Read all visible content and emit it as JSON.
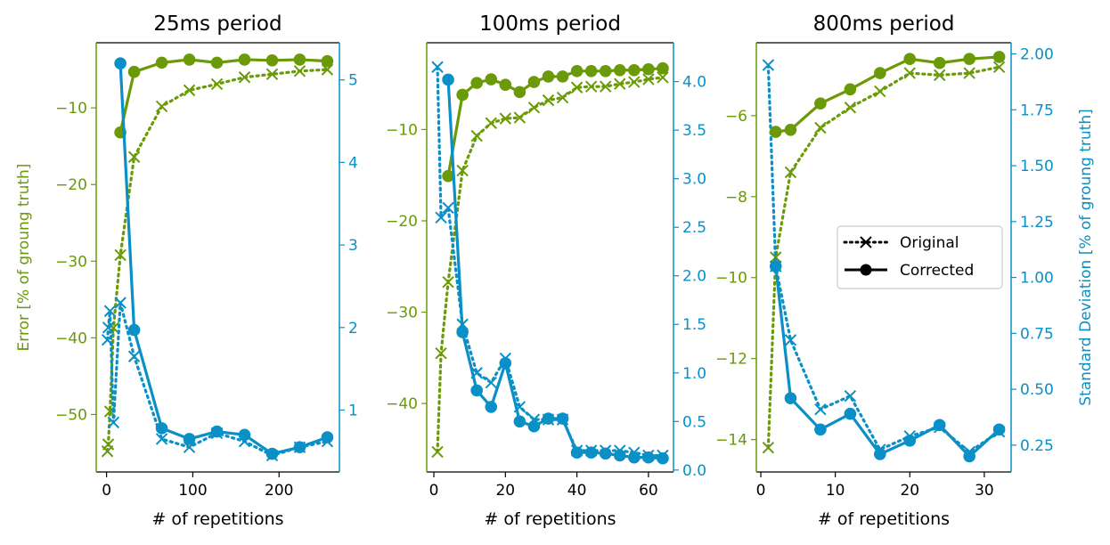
{
  "chart_data": {
    "type": "line",
    "shared": {
      "xlabel": "# of repetitions",
      "ylabel_left": "Error [% of groung truth]",
      "ylabel_right": "Standard Deviation [% of groung truth]",
      "legend": [
        {
          "name": "Original",
          "marker": "x",
          "linestyle": "dotted"
        },
        {
          "name": "Corrected",
          "marker": "o",
          "linestyle": "solid"
        }
      ],
      "legend_location": "right, in third panel",
      "colors": {
        "error": "#6a9a07",
        "std": "#0a90c6"
      }
    },
    "panels": [
      {
        "title": "25ms period",
        "xlim": [
          -12,
          270
        ],
        "xticks": [
          0,
          100,
          200
        ],
        "ylim_left": [
          -57.5,
          -1.5
        ],
        "yticks_left": [
          -50,
          -40,
          -30,
          -20,
          -10
        ],
        "ylim_right": [
          0.25,
          5.45
        ],
        "yticks_right": [
          1,
          2,
          3,
          4,
          5
        ],
        "series": [
          {
            "name": "Error Original",
            "axis": "left",
            "color": "#6a9a07",
            "marker": "x",
            "linestyle": "dotted",
            "x": [
              1,
              2,
              4,
              8,
              16,
              32,
              64,
              96,
              128,
              160,
              192,
              224,
              256
            ],
            "y": [
              -54.8,
              -53.9,
              -49.6,
              -38.7,
              -29.2,
              -16.4,
              -9.8,
              -7.7,
              -6.9,
              -6.0,
              -5.6,
              -5.2,
              -5.0
            ]
          },
          {
            "name": "Error Corrected",
            "axis": "left",
            "color": "#6a9a07",
            "marker": "o",
            "linestyle": "solid",
            "x": [
              16,
              32,
              64,
              96,
              128,
              160,
              192,
              224,
              256
            ],
            "y": [
              -13.2,
              -5.3,
              -4.1,
              -3.7,
              -4.1,
              -3.7,
              -3.8,
              -3.7,
              -3.9
            ]
          },
          {
            "name": "Std Original",
            "axis": "right",
            "color": "#0a90c6",
            "marker": "x",
            "linestyle": "dotted",
            "x": [
              1,
              2,
              4,
              8,
              16,
              32,
              64,
              96,
              128,
              160,
              192,
              224,
              256
            ],
            "y": [
              1.85,
              2.0,
              2.2,
              0.85,
              2.3,
              1.65,
              0.65,
              0.55,
              0.72,
              0.62,
              0.45,
              0.55,
              0.62
            ]
          },
          {
            "name": "Std Corrected",
            "axis": "right",
            "color": "#0a90c6",
            "marker": "o",
            "linestyle": "solid",
            "x": [
              16,
              32,
              64,
              96,
              128,
              160,
              192,
              224,
              256
            ],
            "y": [
              5.2,
              1.97,
              0.78,
              0.65,
              0.74,
              0.7,
              0.47,
              0.55,
              0.67
            ]
          }
        ]
      },
      {
        "title": "100ms period",
        "xlim": [
          -2,
          67
        ],
        "xticks": [
          0,
          20,
          40,
          60
        ],
        "ylim_left": [
          -47.5,
          -0.5
        ],
        "yticks_left": [
          -40,
          -30,
          -20,
          -10
        ],
        "ylim_right": [
          -0.02,
          4.4
        ],
        "yticks_right": [
          0.0,
          0.5,
          1.0,
          1.5,
          2.0,
          2.5,
          3.0,
          3.5,
          4.0
        ],
        "series": [
          {
            "name": "Error Original",
            "axis": "left",
            "color": "#6a9a07",
            "marker": "x",
            "linestyle": "dotted",
            "x": [
              1,
              2,
              4,
              8,
              12,
              16,
              20,
              24,
              28,
              32,
              36,
              40,
              44,
              48,
              52,
              56,
              60,
              64
            ],
            "y": [
              -45.3,
              -34.5,
              -26.7,
              -14.5,
              -10.7,
              -9.3,
              -8.8,
              -8.7,
              -7.6,
              -6.8,
              -6.5,
              -5.4,
              -5.3,
              -5.3,
              -5.0,
              -4.8,
              -4.5,
              -4.3
            ]
          },
          {
            "name": "Error Corrected",
            "axis": "left",
            "color": "#6a9a07",
            "marker": "o",
            "linestyle": "solid",
            "x": [
              4,
              8,
              12,
              16,
              20,
              24,
              28,
              32,
              36,
              40,
              44,
              48,
              52,
              56,
              60,
              64
            ],
            "y": [
              -15.1,
              -6.2,
              -4.9,
              -4.5,
              -5.1,
              -5.9,
              -4.8,
              -4.2,
              -4.2,
              -3.6,
              -3.6,
              -3.6,
              -3.5,
              -3.5,
              -3.4,
              -3.3
            ]
          },
          {
            "name": "Std Original",
            "axis": "right",
            "color": "#0a90c6",
            "marker": "x",
            "linestyle": "dotted",
            "x": [
              1,
              2,
              4,
              8,
              12,
              16,
              20,
              24,
              28,
              32,
              36,
              40,
              44,
              48,
              52,
              56,
              60,
              64
            ],
            "y": [
              4.15,
              2.6,
              2.7,
              1.5,
              1.0,
              0.9,
              1.15,
              0.65,
              0.52,
              0.52,
              0.52,
              0.2,
              0.2,
              0.2,
              0.2,
              0.18,
              0.15,
              0.15
            ]
          },
          {
            "name": "Std Corrected",
            "axis": "right",
            "color": "#0a90c6",
            "marker": "o",
            "linestyle": "solid",
            "x": [
              4,
              8,
              12,
              16,
              20,
              24,
              28,
              32,
              36,
              40,
              44,
              48,
              52,
              56,
              60,
              64
            ],
            "y": [
              4.02,
              1.42,
              0.82,
              0.65,
              1.1,
              0.5,
              0.45,
              0.53,
              0.53,
              0.18,
              0.18,
              0.17,
              0.15,
              0.13,
              0.13,
              0.12
            ]
          }
        ]
      },
      {
        "title": "800ms period",
        "xlim": [
          -0.6,
          33.6
        ],
        "xticks": [
          0,
          10,
          20,
          30
        ],
        "ylim_left": [
          -14.8,
          -4.2
        ],
        "yticks_left": [
          -14,
          -12,
          -10,
          -8,
          -6
        ],
        "ylim_right": [
          0.13,
          2.05
        ],
        "yticks_right": [
          0.25,
          0.5,
          0.75,
          1.0,
          1.25,
          1.5,
          1.75,
          2.0
        ],
        "series": [
          {
            "name": "Error Original",
            "axis": "left",
            "color": "#6a9a07",
            "marker": "x",
            "linestyle": "dotted",
            "x": [
              1,
              2,
              4,
              8,
              12,
              16,
              20,
              24,
              28,
              32
            ],
            "y": [
              -14.2,
              -9.5,
              -7.4,
              -6.3,
              -5.8,
              -5.4,
              -4.95,
              -5.0,
              -4.95,
              -4.8
            ]
          },
          {
            "name": "Error Corrected",
            "axis": "left",
            "color": "#6a9a07",
            "marker": "o",
            "linestyle": "solid",
            "x": [
              2,
              4,
              8,
              12,
              16,
              20,
              24,
              28,
              32
            ],
            "y": [
              -6.4,
              -6.35,
              -5.7,
              -5.35,
              -4.95,
              -4.6,
              -4.7,
              -4.6,
              -4.55
            ]
          },
          {
            "name": "Std Original",
            "axis": "right",
            "color": "#0a90c6",
            "marker": "x",
            "linestyle": "dotted",
            "x": [
              1,
              2,
              4,
              8,
              12,
              16,
              20,
              24,
              28,
              32
            ],
            "y": [
              1.95,
              1.05,
              0.72,
              0.41,
              0.47,
              0.23,
              0.29,
              0.33,
              0.22,
              0.31
            ]
          },
          {
            "name": "Std Corrected",
            "axis": "right",
            "color": "#0a90c6",
            "marker": "o",
            "linestyle": "solid",
            "x": [
              2,
              4,
              8,
              12,
              16,
              20,
              24,
              28,
              32
            ],
            "y": [
              1.05,
              0.46,
              0.32,
              0.39,
              0.21,
              0.27,
              0.34,
              0.2,
              0.32
            ]
          }
        ]
      }
    ]
  }
}
